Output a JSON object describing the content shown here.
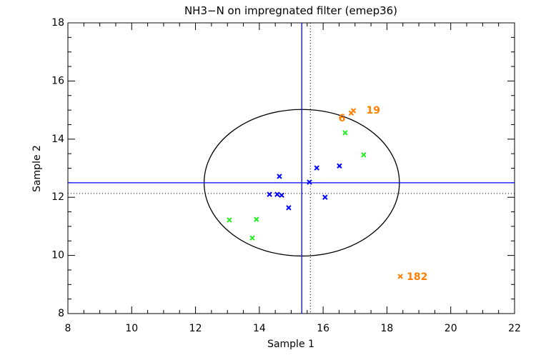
{
  "chart_data": {
    "type": "scatter",
    "title": "NH3−N on impregnated filter (emep36)",
    "xlabel": "Sample 1",
    "ylabel": "Sample 2",
    "xlim": [
      8,
      22
    ],
    "ylim": [
      8,
      18
    ],
    "xticks": [
      "8",
      "10",
      "12",
      "14",
      "16",
      "18",
      "20",
      "22"
    ],
    "yticks": [
      "8",
      "10",
      "12",
      "14",
      "16",
      "18"
    ],
    "grid": false,
    "reference_lines": {
      "vertical_solid": 15.33,
      "horizontal_solid": 12.5,
      "vertical_dotted": 15.6,
      "horizontal_dotted": 12.13,
      "color": "#0000ff"
    },
    "ellipse": {
      "center": [
        15.33,
        12.5
      ],
      "radius_x": 3.06,
      "radius_y": 2.52,
      "color": "#000000"
    },
    "series": [
      {
        "color": "#0000ff",
        "points": [
          [
            14.63,
            12.72
          ],
          [
            15.8,
            13.01
          ],
          [
            16.51,
            13.08
          ],
          [
            15.57,
            12.52
          ],
          [
            14.32,
            12.1
          ],
          [
            14.56,
            12.1
          ],
          [
            14.7,
            12.07
          ],
          [
            14.92,
            11.64
          ],
          [
            16.06,
            12.0
          ]
        ]
      },
      {
        "color": "#22ee22",
        "points": [
          [
            16.69,
            14.22
          ],
          [
            17.27,
            13.46
          ],
          [
            13.06,
            11.22
          ],
          [
            13.91,
            11.24
          ],
          [
            13.78,
            10.6
          ]
        ]
      },
      {
        "color": "#ff7f00",
        "points": [
          [
            16.88,
            14.9,
            "6"
          ],
          [
            16.95,
            14.98,
            "19"
          ],
          [
            18.42,
            9.28,
            "182"
          ]
        ]
      }
    ]
  }
}
